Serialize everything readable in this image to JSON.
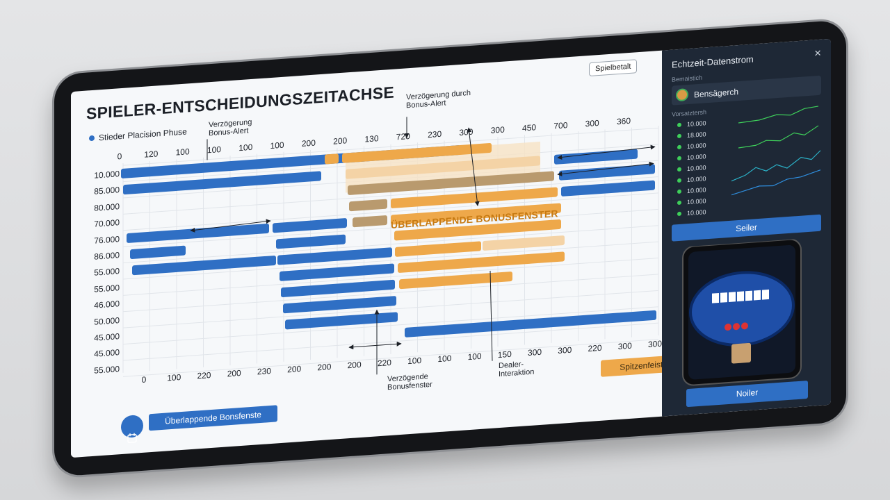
{
  "toolbar": {
    "mode_button": "Spielbetalt"
  },
  "timeline": {
    "title": "SPIELER-ENTSCHEIDUNGSZEITACHSE",
    "legend": "Stieder Placision Phuse",
    "top_axis": [
      "0",
      "120",
      "100",
      "100",
      "100",
      "100",
      "200",
      "200",
      "130",
      "720",
      "230",
      "300",
      "300",
      "450",
      "700",
      "300",
      "360"
    ],
    "y_axis": [
      "10.000",
      "85.000",
      "80.000",
      "70.000",
      "76.000",
      "86.000",
      "55.000",
      "55.000",
      "46.000",
      "50.000",
      "45.000",
      "45.000",
      "55.000"
    ],
    "bottom_axis": [
      "0",
      "100",
      "220",
      "200",
      "230",
      "200",
      "200",
      "200",
      "220",
      "100",
      "100",
      "100",
      "150",
      "300",
      "300",
      "220",
      "300",
      "300"
    ],
    "annotations": {
      "delay_left": "Verzögerung\nBonus-Alert",
      "delay_top": "Verzögerung durch\nBonus-Alert",
      "overlap": "ÜBERLAPPENDE BONUSFENSTER",
      "bonus_window": "Verzögende\nBonusfenster",
      "dealer": "Dealer-\nInteraktion"
    },
    "orange_button": "Spitzenfeistan",
    "bottom_button": "Überlappende Bonsfenste"
  },
  "panel": {
    "title": "Echtzeit-Datenstrom",
    "close": "×",
    "section_label": "Bemaistich",
    "user_name": "Bensägerch",
    "list_label": "Vorsatztersh",
    "items": [
      "10.000",
      "18.000",
      "10.000",
      "10.000",
      "10.000",
      "10.000",
      "10.000",
      "10.000",
      "10.000"
    ],
    "panel_button": "Seiler",
    "phone_button": "Noiler"
  }
}
